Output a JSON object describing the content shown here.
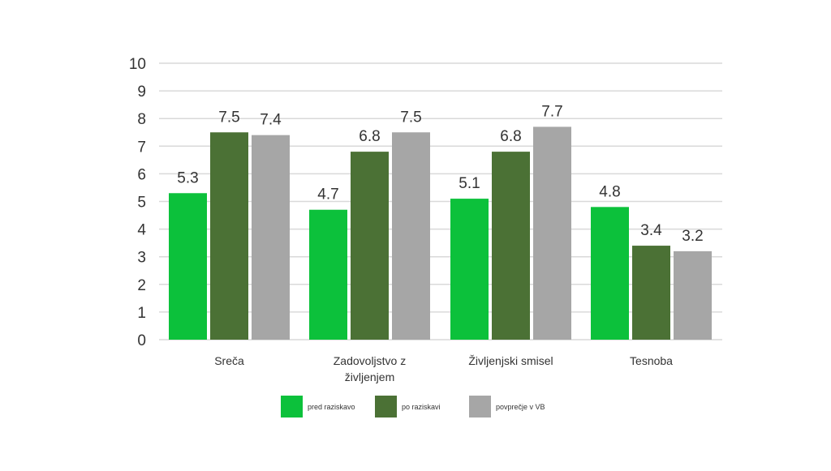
{
  "chart_data": {
    "type": "bar",
    "title": "",
    "xlabel": "",
    "ylabel": "",
    "ylim": [
      0,
      10
    ],
    "yticks": [
      "0",
      "1",
      "2",
      "3",
      "4",
      "5",
      "6",
      "7",
      "8",
      "9",
      "10"
    ],
    "grid": true,
    "legend_position": "bottom",
    "categories": [
      [
        "Sreča"
      ],
      [
        "Zadovoljstvo z",
        "življenjem"
      ],
      [
        "Življenjski smisel"
      ],
      [
        "Tesnoba"
      ]
    ],
    "series": [
      {
        "name": "pred raziskavo",
        "color": "#0cc13b",
        "values": [
          5.3,
          4.7,
          5.1,
          4.8
        ],
        "labels": [
          "5.3",
          "4.7",
          "5.1",
          "4.8"
        ]
      },
      {
        "name": "po raziskavi",
        "color": "#4b7135",
        "values": [
          7.5,
          6.8,
          6.8,
          3.4
        ],
        "labels": [
          "7.5",
          "6.8",
          "6.8",
          "3.4"
        ]
      },
      {
        "name": "povprečje v VB",
        "color": "#a6a6a6",
        "values": [
          7.4,
          7.5,
          7.7,
          3.2
        ],
        "labels": [
          "7.4",
          "7.5",
          "7.7",
          "3.2"
        ]
      }
    ]
  }
}
